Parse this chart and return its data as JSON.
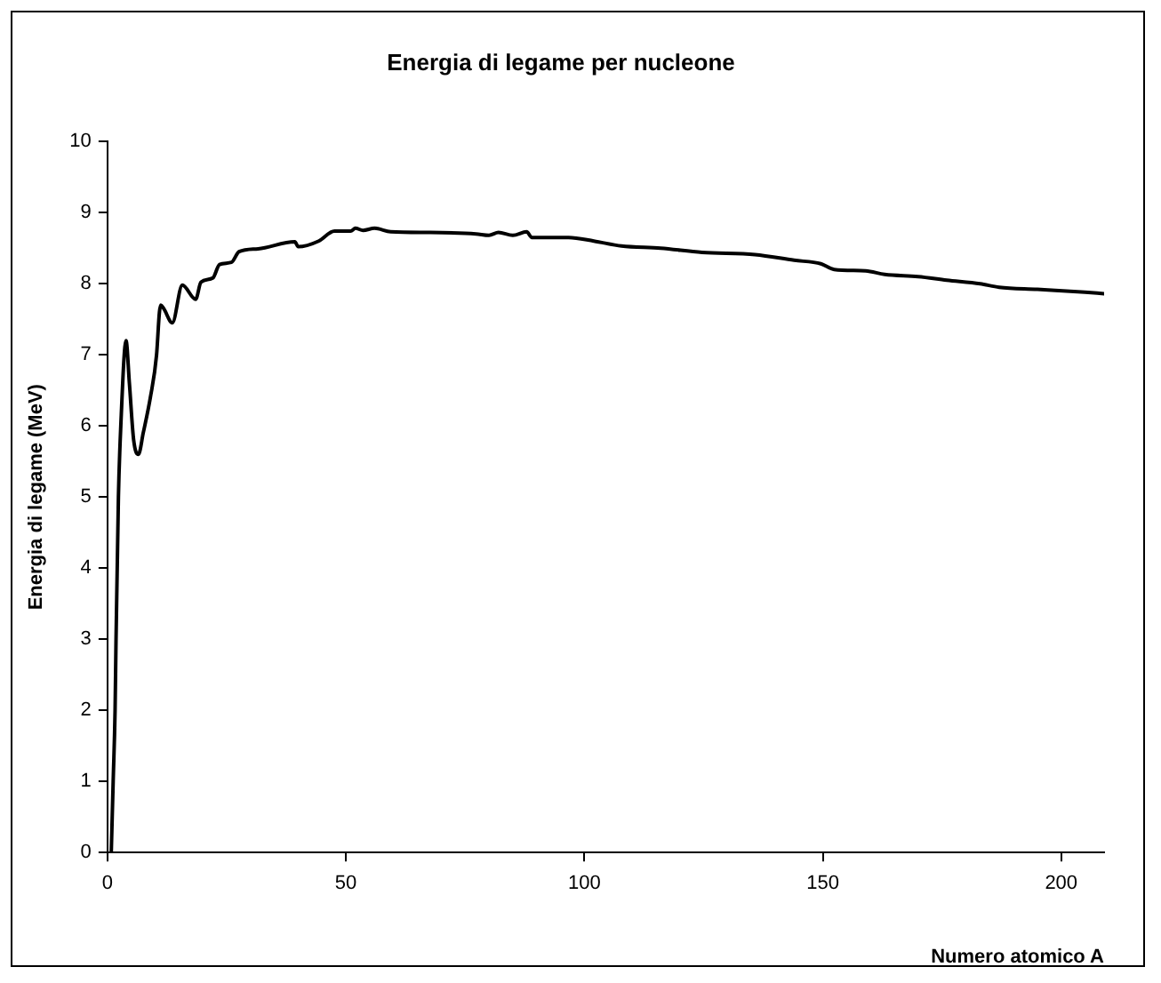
{
  "chart_data": {
    "type": "line",
    "title": "Energia di legame per nucleone",
    "xlabel": "Numero atomico A",
    "ylabel": "Energia di legame (MeV)",
    "x": [
      0.8,
      1.2,
      1.6,
      1.8,
      2.3,
      2.8,
      3.9,
      4.6,
      5.5,
      6.5,
      7.5,
      9,
      10.3,
      10.9,
      11.2,
      11.8,
      13.6,
      15.7,
      18.5,
      19.6,
      22.1,
      23.5,
      26,
      27.6,
      31.6,
      39.3,
      40,
      44.3,
      47.6,
      51,
      52,
      53.6,
      56,
      59.4,
      67.7,
      77.3,
      80,
      82,
      85,
      87.9,
      89,
      96.7,
      102,
      107.8,
      116,
      124.7,
      135.8,
      144,
      149.6,
      152.4,
      159,
      163,
      170,
      176,
      183,
      187,
      195,
      205,
      209
    ],
    "series": [
      {
        "color": "#000000",
        "values": [
          0,
          1,
          2,
          3,
          5,
          6,
          7.2,
          6.6,
          5.8,
          5.6,
          5.9,
          6.4,
          7.0,
          7.6,
          7.7,
          7.65,
          7.45,
          7.98,
          7.78,
          8.02,
          8.08,
          8.27,
          8.3,
          8.45,
          8.49,
          8.59,
          8.52,
          8.6,
          8.74,
          8.74,
          8.78,
          8.75,
          8.78,
          8.73,
          8.72,
          8.7,
          8.68,
          8.72,
          8.68,
          8.73,
          8.65,
          8.65,
          8.6,
          8.53,
          8.5,
          8.44,
          8.41,
          8.33,
          8.28,
          8.2,
          8.18,
          8.13,
          8.1,
          8.05,
          8.0,
          7.95,
          7.92,
          7.88,
          7.86
        ]
      }
    ],
    "xlim": [
      0,
      209
    ],
    "xticks": [
      0,
      50,
      100,
      150,
      200
    ],
    "ylim": [
      0,
      10
    ],
    "yticks": [
      0,
      1,
      2,
      3,
      4,
      5,
      6,
      7,
      8,
      9,
      10
    ],
    "grid": false,
    "legend": false,
    "marker": "none",
    "line_style": "solid"
  }
}
